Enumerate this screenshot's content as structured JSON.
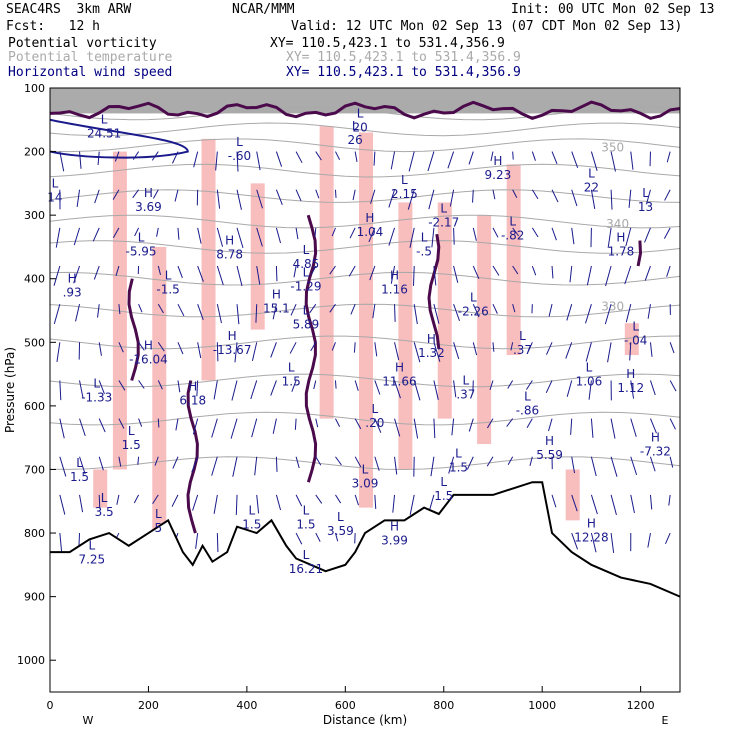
{
  "header": {
    "model": "SEAC4RS  3km ARW",
    "center": "NCAR/MMM",
    "init": "Init: 00 UTC Mon 02 Sep 13",
    "fcst": "Fcst:   12 h",
    "valid": "Valid: 12 UTC Mon 02 Sep 13 (07 CDT Mon 02 Sep 13)",
    "fields": [
      {
        "name": "Potential vorticity",
        "xy": "XY= 110.5,423.1 to 531.4,356.9",
        "color": "#000000"
      },
      {
        "name": "Potential temperature",
        "xy": "XY= 110.5,423.1 to 531.4,356.9",
        "color": "#aaaaaa"
      },
      {
        "name": "Horizontal wind speed",
        "xy": "XY= 110.5,423.1 to 531.4,356.9",
        "color": "#000080"
      }
    ]
  },
  "colors": {
    "pv_contour": "#4b0a4b",
    "theta": "#a9a9a9",
    "wind": "#1a1a8c",
    "shading_pink": "#f7b6b6",
    "terrain": "#000000"
  },
  "chart_data": {
    "type": "cross-section",
    "xlabel": "Distance (km)",
    "ylabel": "Pressure (hPa)",
    "xlim": [
      0,
      1280
    ],
    "ylim": [
      1050,
      100
    ],
    "xticks": [
      0,
      200,
      400,
      600,
      800,
      1000,
      1200
    ],
    "yticks": [
      100,
      200,
      300,
      400,
      500,
      600,
      700,
      800,
      900,
      1000
    ],
    "x_end_labels": [
      "W",
      "E"
    ],
    "theta_labels": [
      {
        "text": "350",
        "x": 1120,
        "p": 200
      },
      {
        "text": "340",
        "x": 1130,
        "p": 320
      },
      {
        "text": "330",
        "x": 1120,
        "p": 450
      }
    ],
    "extrema": [
      {
        "kind": "L",
        "value": "24.51",
        "x": 110,
        "p": 175
      },
      {
        "kind": "L",
        "value": "20",
        "x": 630,
        "p": 165
      },
      {
        "kind": "L",
        "value": "26",
        "x": 620,
        "p": 185
      },
      {
        "kind": "L",
        "value": "-.60",
        "x": 385,
        "p": 210
      },
      {
        "kind": "L",
        "value": "14",
        "x": 10,
        "p": 275
      },
      {
        "kind": "H",
        "value": "3.69",
        "x": 200,
        "p": 290
      },
      {
        "kind": "H",
        "value": "9.23",
        "x": 910,
        "p": 240
      },
      {
        "kind": "L",
        "value": "2.15",
        "x": 720,
        "p": 270
      },
      {
        "kind": "L",
        "value": "22",
        "x": 1100,
        "p": 260
      },
      {
        "kind": "L",
        "value": "13",
        "x": 1210,
        "p": 290
      },
      {
        "kind": "L",
        "value": "-2.17",
        "x": 800,
        "p": 315
      },
      {
        "kind": "H",
        "value": "1.04",
        "x": 650,
        "p": 330
      },
      {
        "kind": "L",
        "value": "-.82",
        "x": 940,
        "p": 335
      },
      {
        "kind": "L",
        "value": "-5.95",
        "x": 185,
        "p": 360
      },
      {
        "kind": "H",
        "value": "8.78",
        "x": 365,
        "p": 365
      },
      {
        "kind": "L",
        "value": "-.5",
        "x": 760,
        "p": 360
      },
      {
        "kind": "H",
        "value": "1.78",
        "x": 1160,
        "p": 360
      },
      {
        "kind": "L",
        "value": "4.85",
        "x": 520,
        "p": 380
      },
      {
        "kind": "L",
        "value": "-1.29",
        "x": 520,
        "p": 415
      },
      {
        "kind": "H",
        "value": "1.16",
        "x": 700,
        "p": 420
      },
      {
        "kind": "H",
        "value": ".93",
        "x": 45,
        "p": 425
      },
      {
        "kind": "L",
        "value": "-1.5",
        "x": 240,
        "p": 420
      },
      {
        "kind": "H",
        "value": "15.1",
        "x": 460,
        "p": 450
      },
      {
        "kind": "L",
        "value": "-2.26",
        "x": 860,
        "p": 455
      },
      {
        "kind": "L",
        "value": "5.89",
        "x": 520,
        "p": 475
      },
      {
        "kind": "L",
        "value": "-.04",
        "x": 1190,
        "p": 500
      },
      {
        "kind": "H",
        "value": "-16.04",
        "x": 200,
        "p": 530
      },
      {
        "kind": "H",
        "value": "-13.67",
        "x": 370,
        "p": 515
      },
      {
        "kind": "H",
        "value": "1.32",
        "x": 775,
        "p": 520
      },
      {
        "kind": "L",
        "value": ".37",
        "x": 960,
        "p": 515
      },
      {
        "kind": "H",
        "value": "11.66",
        "x": 710,
        "p": 565
      },
      {
        "kind": "L",
        "value": "1.06",
        "x": 1095,
        "p": 565
      },
      {
        "kind": "H",
        "value": "1.12",
        "x": 1180,
        "p": 575
      },
      {
        "kind": "L",
        "value": "1.5",
        "x": 490,
        "p": 565
      },
      {
        "kind": "L",
        "value": ".37",
        "x": 845,
        "p": 585
      },
      {
        "kind": "L",
        "value": "-1.33",
        "x": 95,
        "p": 590
      },
      {
        "kind": "H",
        "value": "6.18",
        "x": 290,
        "p": 595
      },
      {
        "kind": "L",
        "value": "-.86",
        "x": 970,
        "p": 610
      },
      {
        "kind": "L",
        "value": ".20",
        "x": 660,
        "p": 630
      },
      {
        "kind": "H",
        "value": "5.59",
        "x": 1015,
        "p": 680
      },
      {
        "kind": "H",
        "value": "-7.32",
        "x": 1230,
        "p": 675
      },
      {
        "kind": "L",
        "value": "1.5",
        "x": 165,
        "p": 665
      },
      {
        "kind": "L",
        "value": "3.09",
        "x": 640,
        "p": 725
      },
      {
        "kind": "L",
        "value": "1.5",
        "x": 830,
        "p": 700
      },
      {
        "kind": "L",
        "value": "1.5",
        "x": 60,
        "p": 715
      },
      {
        "kind": "L",
        "value": "1.5",
        "x": 410,
        "p": 790
      },
      {
        "kind": "L",
        "value": "1.5",
        "x": 520,
        "p": 790
      },
      {
        "kind": "L",
        "value": "1.5",
        "x": 800,
        "p": 745
      },
      {
        "kind": "L",
        "value": "3.5",
        "x": 110,
        "p": 770
      },
      {
        "kind": "L",
        "value": "3.59",
        "x": 590,
        "p": 800
      },
      {
        "kind": "H",
        "value": "3.99",
        "x": 700,
        "p": 815
      },
      {
        "kind": "H",
        "value": "12.28",
        "x": 1100,
        "p": 810
      },
      {
        "kind": "L",
        "value": "16.21",
        "x": 520,
        "p": 860
      },
      {
        "kind": "L",
        "value": "7.25",
        "x": 85,
        "p": 845
      },
      {
        "kind": "L",
        "value": "5",
        "x": 220,
        "p": 795
      }
    ]
  }
}
